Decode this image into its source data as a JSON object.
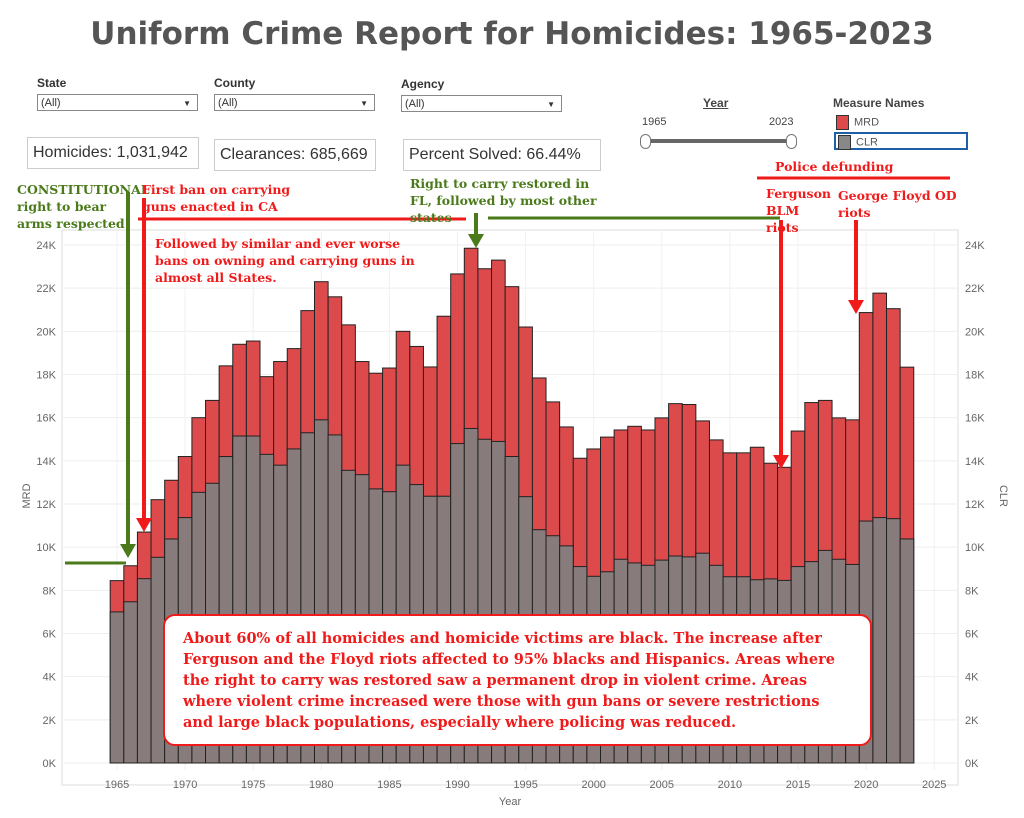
{
  "title": "Uniform Crime Report for Homicides: 1965-2023",
  "filters": [
    {
      "label": "State",
      "value": "(All)"
    },
    {
      "label": "County",
      "value": "(All)"
    },
    {
      "label": "Agency",
      "value": "(All)"
    }
  ],
  "kpis": {
    "homicides": "Homicides: 1,031,942",
    "clearances": "Clearances: 685,669",
    "percent": "Percent Solved: 66.44%"
  },
  "year_slider": {
    "label": "Year",
    "min": "1965",
    "max": "2023",
    "range_fraction": [
      0,
      1
    ]
  },
  "legend": {
    "title": "Measure Names",
    "items": [
      {
        "label": "MRD",
        "color": "#dc4a4c"
      },
      {
        "label": "CLR",
        "color": "#877b7c"
      }
    ]
  },
  "annotations": {
    "constitutional": "CONSTITUTIONAL right to bear arms respected",
    "first_ban": "First ban on carrying guns enacted in CA",
    "followed": "Followed by similar and ever worse bans on owning and carrying guns in almost all States.",
    "rtc": "Right to carry restored in FL, followed by most other states",
    "police": "Police defunding",
    "ferguson": "Ferguson BLM riots",
    "floyd": "George Floyd OD riots",
    "note": "About 60% of all homicides and homicide victims are black. The increase after Ferguson and the Floyd riots affected to 95% blacks and Hispanics. Areas where the right to carry was restored saw a permanent drop in violent crime. Areas where violent crime increased were those with gun bans or severe restrictions and large black populations, especially where policing was reduced."
  },
  "chart_data": {
    "type": "bar",
    "xlabel": "Year",
    "ylabel_left": "MRD",
    "ylabel_right": "CLR",
    "ylim": [
      0,
      24000
    ],
    "yticks": [
      "0K",
      "2K",
      "4K",
      "6K",
      "8K",
      "10K",
      "12K",
      "14K",
      "16K",
      "18K",
      "20K",
      "22K",
      "24K"
    ],
    "xticks": [
      "1965",
      "1970",
      "1975",
      "1980",
      "1985",
      "1990",
      "1995",
      "2000",
      "2005",
      "2010",
      "2015",
      "2020",
      "2025"
    ],
    "x_start": 1965,
    "series": [
      {
        "name": "MRD",
        "color": "#dc4a4c",
        "values": [
          8450,
          9140,
          10700,
          12200,
          13100,
          14200,
          16000,
          16800,
          18400,
          19400,
          19550,
          17900,
          18600,
          19200,
          20960,
          22300,
          21600,
          20300,
          18600,
          18060,
          18300,
          20000,
          19300,
          18350,
          20700,
          22660,
          23850,
          22900,
          23300,
          22070,
          20200,
          17840,
          16730,
          15570,
          14120,
          14550,
          15100,
          15430,
          15600,
          15430,
          15990,
          16650,
          16610,
          15850,
          14970,
          14370,
          14370,
          14630,
          13890,
          13700,
          15380,
          16700,
          16800,
          15990,
          15900,
          20870,
          21770,
          21050,
          18340
        ]
      },
      {
        "name": "CLR",
        "color": "#877b7c",
        "values": [
          7000,
          7470,
          8540,
          9530,
          10380,
          11370,
          12540,
          12960,
          14200,
          15150,
          15150,
          14300,
          13800,
          14550,
          15300,
          15900,
          15200,
          13560,
          13360,
          12700,
          12570,
          13800,
          12900,
          12360,
          12360,
          14800,
          15500,
          15000,
          14900,
          14200,
          12340,
          10810,
          10530,
          10060,
          9100,
          8650,
          8860,
          9440,
          9270,
          9160,
          9400,
          9590,
          9550,
          9720,
          9160,
          8630,
          8630,
          8490,
          8530,
          8460,
          9100,
          9330,
          9850,
          9440,
          9200,
          11210,
          11370,
          11320,
          10380
        ]
      }
    ]
  }
}
